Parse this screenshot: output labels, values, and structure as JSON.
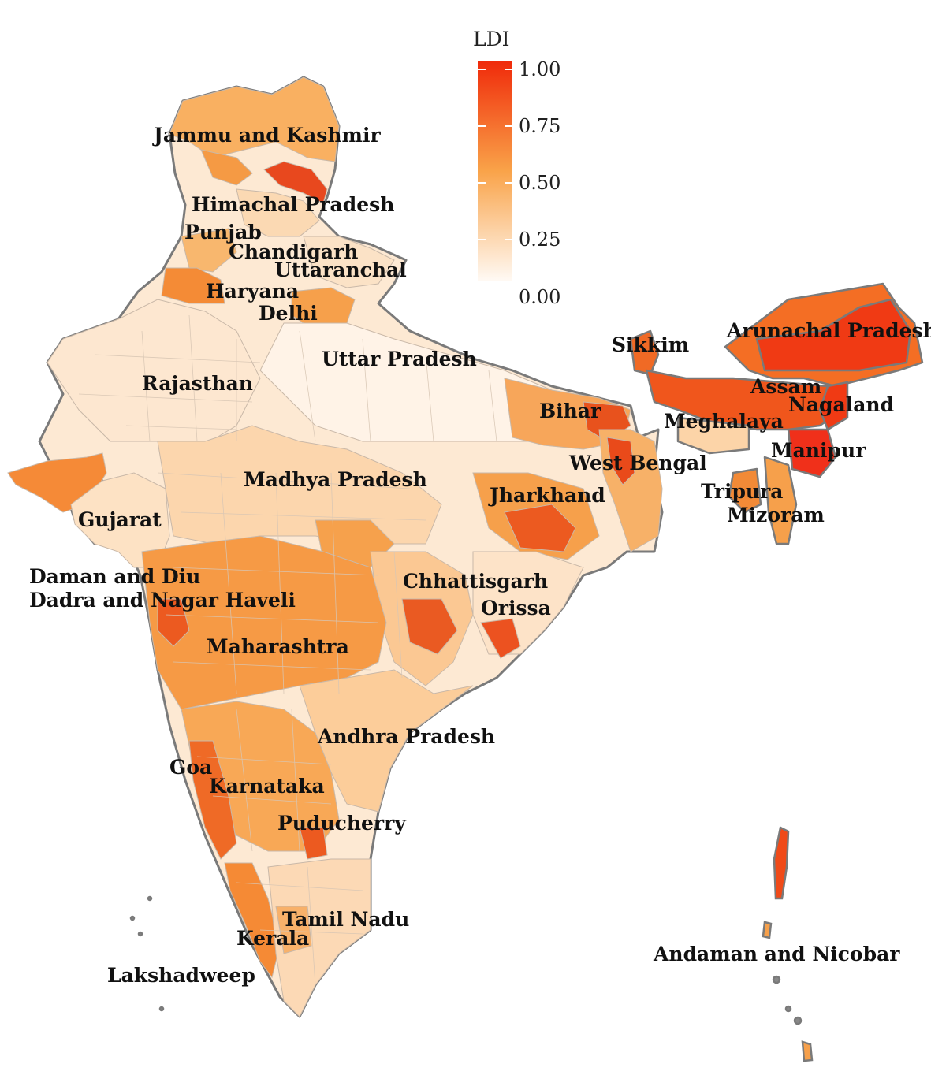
{
  "legend": {
    "title": "LDI",
    "ticks": [
      "1.00",
      "0.75",
      "0.50",
      "0.25",
      "0.00"
    ],
    "scale_min": 0.0,
    "scale_max": 1.0,
    "color_low": "#fffaf5",
    "color_mid": "#f9a349",
    "color_high": "#f02a0a"
  },
  "colors": {
    "border": "#7a7a7a",
    "district_border": "#c9b8a8",
    "label": "#111111"
  },
  "labels": [
    "Jammu and Kashmir",
    "Himachal Pradesh",
    "Punjab",
    "Chandigarh",
    "Uttaranchal",
    "Haryana",
    "Delhi",
    "Uttar Pradesh",
    "Rajasthan",
    "Sikkim",
    "Arunachal Pradesh",
    "Assam",
    "Nagaland",
    "Meghalaya",
    "Bihar",
    "Manipur",
    "West Bengal",
    "Tripura",
    "Mizoram",
    "Madhya Pradesh",
    "Jharkhand",
    "Gujarat",
    "Daman and Diu",
    "Dadra and Nagar Haveli",
    "Chhattisgarh",
    "Orissa",
    "Maharashtra",
    "Andhra Pradesh",
    "Goa",
    "Karnataka",
    "Puducherry",
    "Tamil Nadu",
    "Kerala",
    "Lakshadweep",
    "Andaman and Nicobar"
  ]
}
